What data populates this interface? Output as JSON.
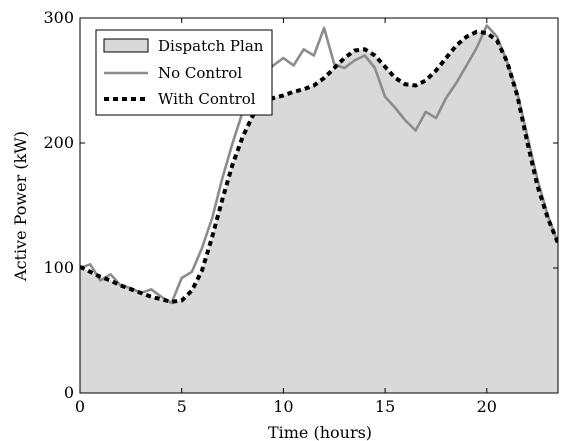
{
  "chart_data": {
    "type": "line",
    "title": "",
    "xlabel": "Time (hours)",
    "ylabel": "Active Power (kW)",
    "xlim": [
      0,
      23.5
    ],
    "ylim": [
      0,
      300
    ],
    "xticks": [
      0,
      5,
      10,
      15,
      20
    ],
    "yticks": [
      0,
      100,
      200,
      300
    ],
    "grid": false,
    "legend_position": "top-left",
    "colors": {
      "dispatch_fill": "#d9d9d9",
      "no_control": "#8c8c8c",
      "with_control": "#000000",
      "axes": "#000000"
    },
    "x": [
      0,
      0.5,
      1,
      1.5,
      2,
      2.5,
      3,
      3.5,
      4,
      4.5,
      5,
      5.5,
      6,
      6.5,
      7,
      7.5,
      8,
      8.5,
      9,
      9.5,
      10,
      10.5,
      11,
      11.5,
      12,
      12.5,
      13,
      13.5,
      14,
      14.5,
      15,
      15.5,
      16,
      16.5,
      17,
      17.5,
      18,
      18.5,
      19,
      19.5,
      20,
      20.5,
      21,
      21.5,
      22,
      22.5,
      23,
      23.5
    ],
    "series": [
      {
        "name": "Dispatch Plan",
        "style": "filled-area",
        "values": [
          101,
          97,
          93,
          90,
          86,
          83,
          80,
          77,
          75,
          73,
          74,
          82,
          98,
          125,
          155,
          183,
          205,
          222,
          232,
          236,
          238,
          241,
          243,
          246,
          252,
          260,
          268,
          274,
          275,
          270,
          261,
          252,
          247,
          246,
          250,
          258,
          268,
          278,
          285,
          289,
          288,
          282,
          265,
          238,
          200,
          165,
          140,
          120
        ]
      },
      {
        "name": "No Control",
        "style": "solid",
        "values": [
          100,
          103,
          90,
          95,
          86,
          84,
          80,
          83,
          77,
          72,
          92,
          97,
          116,
          140,
          172,
          200,
          225,
          240,
          255,
          262,
          268,
          262,
          275,
          270,
          292,
          263,
          260,
          266,
          270,
          260,
          237,
          228,
          218,
          210,
          225,
          220,
          236,
          248,
          262,
          276,
          294,
          285,
          265,
          240,
          205,
          170,
          142,
          120
        ]
      },
      {
        "name": "With Control",
        "style": "dashed",
        "values": [
          101,
          97,
          93,
          90,
          86,
          83,
          80,
          77,
          75,
          73,
          74,
          82,
          98,
          125,
          155,
          183,
          205,
          222,
          232,
          236,
          238,
          241,
          243,
          246,
          252,
          260,
          268,
          274,
          275,
          270,
          261,
          252,
          247,
          246,
          250,
          258,
          268,
          278,
          285,
          289,
          288,
          282,
          265,
          238,
          200,
          165,
          140,
          120
        ]
      }
    ]
  }
}
